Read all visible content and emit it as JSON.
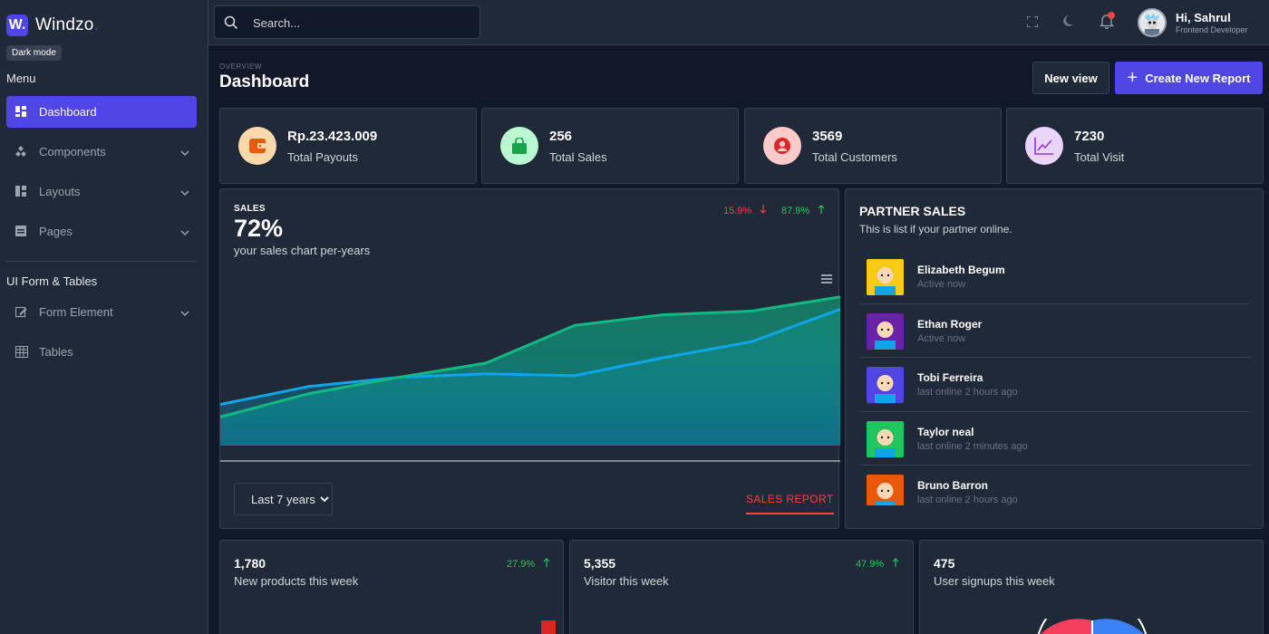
{
  "brand": {
    "logo_letter": "W.",
    "name": "Windzo",
    "dot": "."
  },
  "tooltip": "Dark mode",
  "sidebar": {
    "menu_heading": "Menu",
    "items": [
      {
        "label": "Dashboard",
        "icon": "grid-icon"
      },
      {
        "label": "Components",
        "icon": "puzzle-icon"
      },
      {
        "label": "Layouts",
        "icon": "layout-icon"
      },
      {
        "label": "Pages",
        "icon": "pages-icon"
      }
    ],
    "section2_heading": "UI Form & Tables",
    "items2": [
      {
        "label": "Form Element",
        "icon": "edit-icon"
      },
      {
        "label": "Tables",
        "icon": "table-icon"
      }
    ]
  },
  "search": {
    "placeholder": "Search..."
  },
  "user": {
    "greeting": "Hi, Sahrul",
    "role": "Frontend Developer"
  },
  "header": {
    "overview": "OVERVIEW",
    "title": "Dashboard",
    "new_view": "New view",
    "create_report": "Create New Report",
    "create_icon": "+"
  },
  "stats": [
    {
      "value": "Rp.23.423.009",
      "label": "Total Payouts",
      "icon": "wallet-icon",
      "bg": "#fed7aa",
      "fg": "#ea580c"
    },
    {
      "value": "256",
      "label": "Total Sales",
      "icon": "shopping-bag-icon",
      "bg": "#bbf7d0",
      "fg": "#16a34a"
    },
    {
      "value": "3569",
      "label": "Total Customers",
      "icon": "user-circle-icon",
      "bg": "#fecaca",
      "fg": "#dc2626"
    },
    {
      "value": "7230",
      "label": "Total Visit",
      "icon": "trend-icon",
      "bg": "#e9d5ff",
      "fg": "#9333ea"
    }
  ],
  "sales": {
    "label": "SALES",
    "percent": "72%",
    "subtitle": "your sales chart per-years",
    "change_down": "15.9%",
    "change_up": "87.9%",
    "period_select": "Last 7 years",
    "report_link": "SALES REPORT"
  },
  "chart_data": {
    "type": "area",
    "title": "",
    "xlabel": "",
    "ylabel": "",
    "ylim": [
      0,
      100
    ],
    "grid": false,
    "series": [
      {
        "color": "#0ea5e9",
        "values": [
          23,
          33,
          38,
          40,
          39,
          49,
          58,
          76
        ]
      },
      {
        "color": "#10b981",
        "values": [
          16,
          29,
          38,
          46,
          67,
          73,
          75,
          83
        ]
      }
    ]
  },
  "partners": {
    "title": "PARTNER SALES",
    "subtitle": "This is list if your partner online.",
    "list": [
      {
        "name": "Elizabeth Begum",
        "status": "Active now",
        "bg": "#facc15",
        "skin": "#fcd9b6",
        "hair": "#a16207"
      },
      {
        "name": "Ethan Roger",
        "status": "Active now",
        "bg": "#6b21a8",
        "skin": "#fcd9b6",
        "hair": "#111827"
      },
      {
        "name": "Tobi Ferreira",
        "status": "last online 2 hours ago",
        "bg": "#4f46e5",
        "skin": "#fcd9b6",
        "hair": "#1f2937"
      },
      {
        "name": "Taylor neal",
        "status": "last online 2 minutes ago",
        "bg": "#22c55e",
        "skin": "#fcd9b6",
        "hair": "#1c1917"
      },
      {
        "name": "Bruno Barron",
        "status": "last online 2 hours ago",
        "bg": "#ea580c",
        "skin": "#fcd9b6",
        "hair": "#b91c1c"
      }
    ]
  },
  "bottom": [
    {
      "value": "1,780",
      "label": "New products this week",
      "change": "27.9%"
    },
    {
      "value": "5,355",
      "label": "Visitor this week",
      "change": "47.9%"
    },
    {
      "value": "475",
      "label": "User signups this week",
      "change": ""
    }
  ]
}
